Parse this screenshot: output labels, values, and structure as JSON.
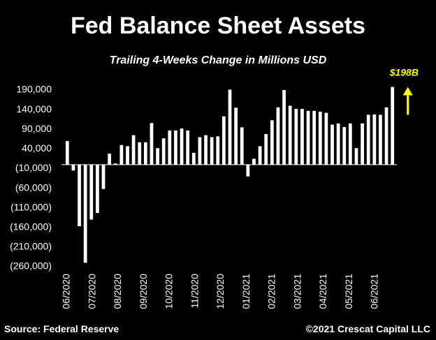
{
  "chart_data": {
    "type": "bar",
    "title": "Fed Balance Sheet Assets",
    "subtitle": "Trailing 4-Weeks Change in Millions USD",
    "ylabel": "",
    "xlabel": "",
    "ylim": [
      -260000,
      205000
    ],
    "yticks": [
      190000,
      140000,
      90000,
      40000,
      -10000,
      -60000,
      -110000,
      -160000,
      -210000,
      -260000
    ],
    "ytick_labels": [
      "190,000",
      "140,000",
      "90,000",
      "40,000",
      "(10,000)",
      "(60,000)",
      "(110,000)",
      "(160,000)",
      "(210,000)",
      "(260,000)"
    ],
    "xtick_labels": [
      "06/2020",
      "07/2020",
      "08/2020",
      "09/2020",
      "10/2020",
      "11/2020",
      "12/2020",
      "01/2021",
      "02/2021",
      "03/2021",
      "04/2021",
      "05/2021",
      "06/2021"
    ],
    "grid": false,
    "bar_color": "#ffffff",
    "values": [
      60000,
      -15000,
      -157000,
      -250000,
      -140000,
      -123000,
      -62000,
      28000,
      3000,
      50000,
      47000,
      75000,
      57000,
      57000,
      106000,
      42000,
      67000,
      87000,
      87000,
      92000,
      87000,
      30000,
      70000,
      75000,
      70000,
      72000,
      123000,
      191000,
      145000,
      95000,
      -30000,
      15000,
      47000,
      78000,
      113000,
      146000,
      190000,
      150000,
      142000,
      142000,
      137000,
      137000,
      135000,
      132000,
      102000,
      105000,
      96000,
      105000,
      42000,
      105000,
      127000,
      128000,
      127000,
      146000,
      198000
    ],
    "annotation": {
      "label": "$198B",
      "color": "#ffff00"
    }
  },
  "source": "Source: Federal Reserve",
  "copyright": "©2021 Crescat Capital LLC"
}
